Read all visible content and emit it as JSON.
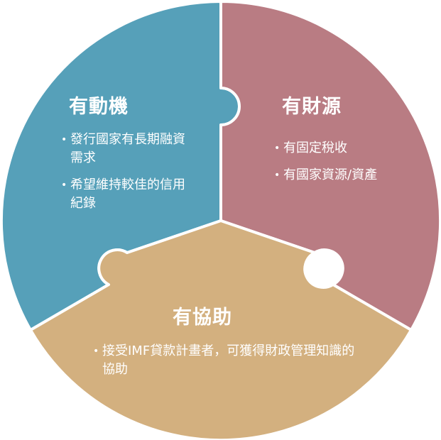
{
  "colors": {
    "piece_top_left": "#56A0B9",
    "piece_top_right": "#B97C83",
    "piece_bottom": "#D3B07F",
    "text": "#FFFFFF",
    "border": "#FFFFFF"
  },
  "pieces": {
    "motivation": {
      "title": "有動機",
      "bullets": [
        "發行國家有長期融資需求",
        "希望維持較佳的信用紀錄"
      ]
    },
    "finance": {
      "title": "有財源",
      "bullets": [
        "有固定稅收",
        "有國家資源/資產"
      ]
    },
    "assistance": {
      "title": "有協助",
      "bullets": [
        "接受IMF貸款計畫者，可獲得財政管理知識的協助"
      ]
    }
  }
}
